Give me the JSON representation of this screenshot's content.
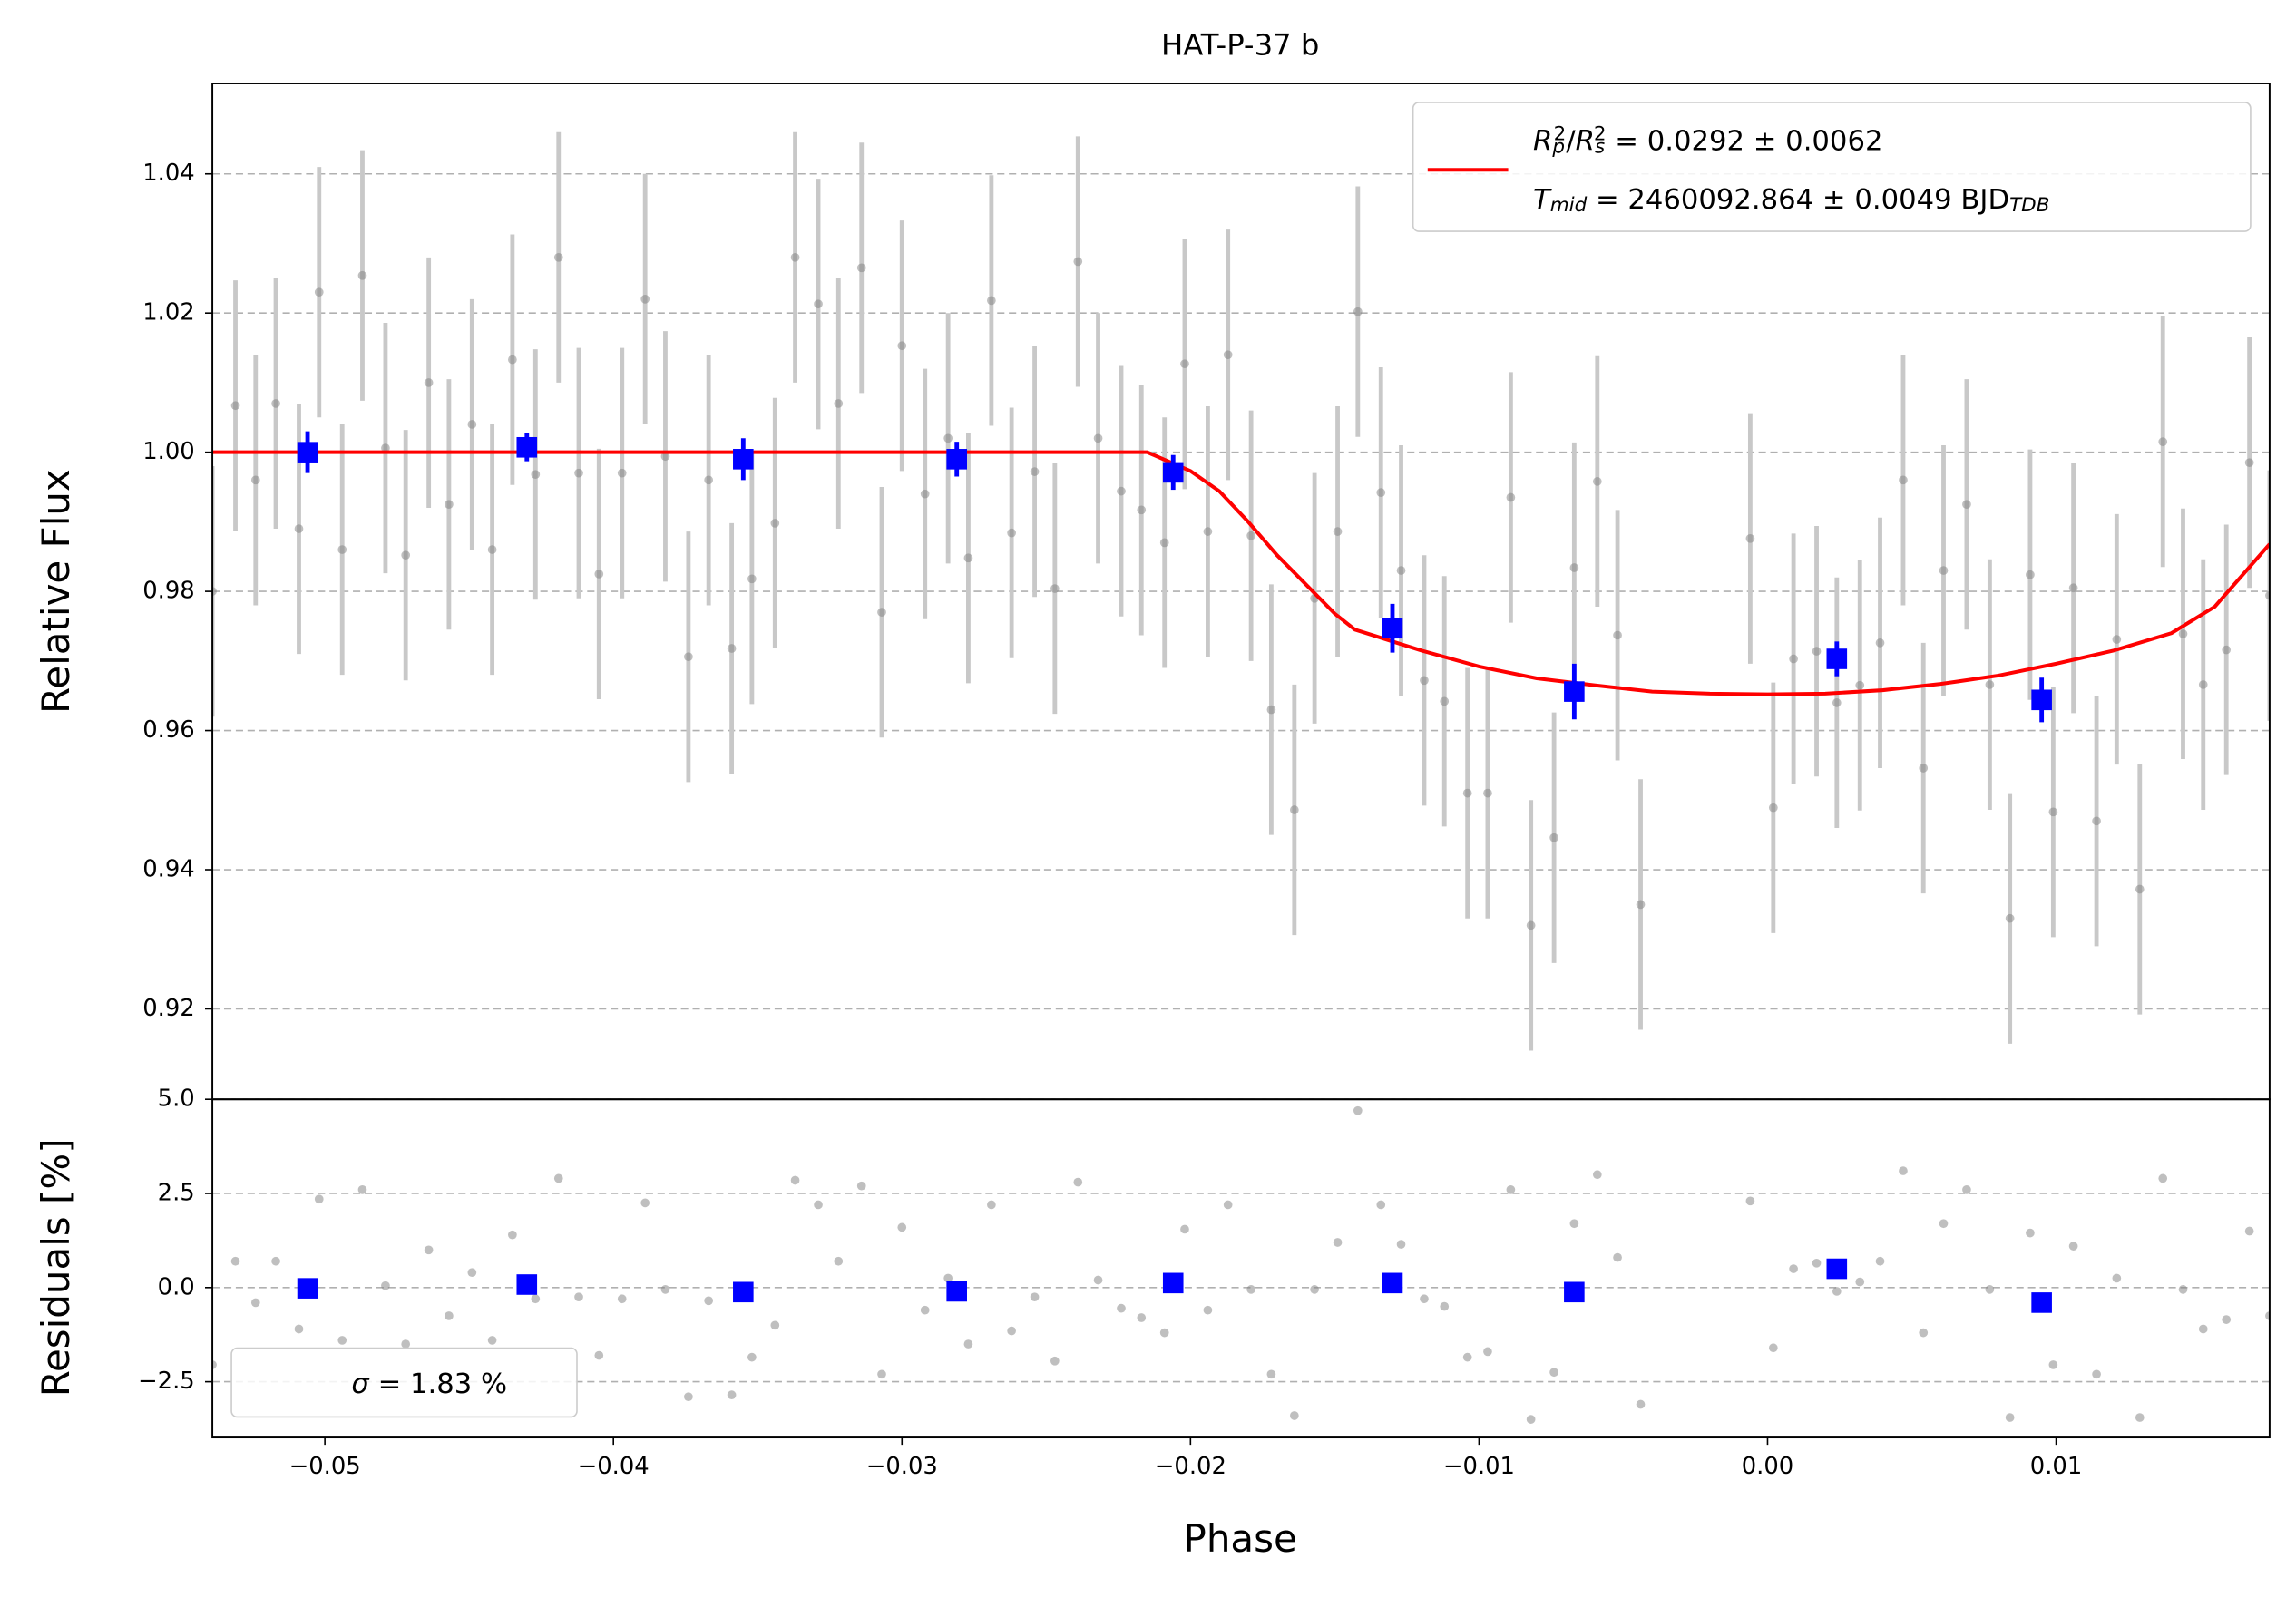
{
  "chart_data": [
    {
      "type": "errorbar",
      "title": "HAT-P-37 b",
      "ylabel": "Relative Flux",
      "xlim": [
        -0.0539,
        0.0174
      ],
      "ylim": [
        0.907,
        1.053
      ],
      "yticks": [
        0.92,
        0.94,
        0.96,
        0.98,
        {
          "value": 1.0,
          "label": "1.00"
        },
        1.02,
        1.04
      ],
      "grid": "y",
      "legend": "upper right",
      "series": [
        {
          "kind": "errorbar",
          "color": "#808080",
          "alpha": 0.5,
          "ecolor": "#c8c8c8",
          "marker": "circle",
          "error": 0.018,
          "x": [
            -0.0539,
            -0.0531,
            -0.0524,
            -0.0517,
            -0.0509,
            -0.0502,
            -0.0494,
            -0.0487,
            -0.0479,
            -0.0472,
            -0.0464,
            -0.0457,
            -0.0449,
            -0.0442,
            -0.0435,
            -0.0427,
            -0.0419,
            -0.0412,
            -0.0405,
            -0.0397,
            -0.0389,
            -0.0382,
            -0.0374,
            -0.0367,
            -0.0359,
            -0.0352,
            -0.0344,
            -0.0337,
            -0.0329,
            -0.0322,
            -0.0314,
            -0.0307,
            -0.03,
            -0.0292,
            -0.0284,
            -0.0277,
            -0.0269,
            -0.0262,
            -0.0254,
            -0.0247,
            -0.0239,
            -0.0232,
            -0.0224,
            -0.0217,
            -0.0209,
            -0.0202,
            -0.0194,
            -0.0187,
            -0.0179,
            -0.0172,
            -0.0164,
            -0.0157,
            -0.0149,
            -0.0142,
            -0.0134,
            -0.0127,
            -0.0119,
            -0.0112,
            -0.0104,
            -0.0097,
            -0.0089,
            -0.0082,
            -0.0074,
            -0.0067,
            -0.0059,
            -0.0052,
            -0.0044,
            -0.0006,
            0.0002,
            0.0009,
            0.0017,
            0.0024,
            0.0032,
            0.0039,
            0.0047,
            0.0054,
            0.0061,
            0.0069,
            0.0077,
            0.0084,
            0.0091,
            0.0099,
            0.0106,
            0.0114,
            0.0121,
            0.0129,
            0.0137,
            0.0144,
            0.0151,
            0.0159,
            0.0167,
            0.0174
          ],
          "values": [
            0.98,
            1.0067,
            0.996,
            1.007,
            0.989,
            1.023,
            0.986,
            1.0254,
            1.0006,
            0.9852,
            1.01,
            0.9925,
            1.004,
            0.986,
            1.0133,
            0.9968,
            1.028,
            0.997,
            0.9825,
            0.997,
            1.022,
            0.9994,
            0.9706,
            0.996,
            0.9718,
            0.9818,
            0.9898,
            1.028,
            1.0213,
            1.007,
            1.0265,
            0.977,
            1.0153,
            0.994,
            1.002,
            0.9848,
            1.0218,
            0.9884,
            0.9972,
            0.9804,
            1.0274,
            1.002,
            0.9944,
            0.9917,
            0.987,
            1.0127,
            0.9886,
            1.014,
            0.988,
            0.963,
            0.9486,
            0.979,
            0.9886,
            1.0202,
            0.9942,
            0.983,
            0.9672,
            0.9642,
            0.951,
            0.951,
            0.9935,
            0.932,
            0.9446,
            0.9834,
            0.9958,
            0.9737,
            0.935,
            0.9876,
            0.9489,
            0.9703,
            0.9714,
            0.964,
            0.9665,
            0.9726,
            0.996,
            0.9546,
            0.983,
            0.9925,
            0.9666,
            0.933,
            0.9824,
            0.9483,
            0.9805,
            0.947,
            0.9731,
            0.9372,
            1.0015,
            0.9739,
            0.9666,
            0.9716,
            0.9985,
            0.9794
          ]
        },
        {
          "kind": "errorbar",
          "color": "#0000ff",
          "alpha": 1,
          "ecolor": "#0000ff",
          "marker": "square",
          "x": [
            -0.0506,
            -0.043,
            -0.0355,
            -0.0281,
            -0.0206,
            -0.013,
            -0.0067,
            0.0024,
            0.0095
          ],
          "values": [
            1.0,
            1.0007,
            0.999,
            0.999,
            0.9971,
            0.9747,
            0.9656,
            0.9703,
            0.9644
          ],
          "errors": [
            0.003,
            0.002,
            0.003,
            0.0025,
            0.0025,
            0.0035,
            0.004,
            0.0025,
            0.0032
          ]
        },
        {
          "kind": "line",
          "color": "#ff0000",
          "x": [
            -0.0539,
            -0.0215,
            -0.02,
            -0.019,
            -0.018,
            -0.017,
            -0.016,
            -0.015,
            -0.0143,
            -0.012,
            -0.01,
            -0.008,
            -0.006,
            -0.004,
            -0.002,
            0.0,
            0.002,
            0.004,
            0.006,
            0.008,
            0.01,
            0.012,
            0.014,
            0.0155,
            0.0174
          ],
          "values": [
            1.0,
            1.0,
            0.9973,
            0.9944,
            0.99,
            0.9852,
            0.981,
            0.9768,
            0.9745,
            0.9715,
            0.9692,
            0.9675,
            0.9665,
            0.9656,
            0.9653,
            0.9652,
            0.9653,
            0.9658,
            0.9667,
            0.9679,
            0.9696,
            0.9715,
            0.974,
            0.9778,
            0.9868
          ],
          "label_lines": [
            [
              {
                "text": "R",
                "style": "italic"
              },
              {
                "text": "p",
                "style": "sub"
              },
              {
                "text": "2",
                "style": "sup"
              },
              {
                "text": "/",
                "style": "normal"
              },
              {
                "text": "R",
                "style": "italic"
              },
              {
                "text": "s",
                "style": "sub"
              },
              {
                "text": "2",
                "style": "sup"
              },
              {
                "text": " = 0.0292 ± 0.0062",
                "style": "normal"
              }
            ],
            [
              {
                "text": "T",
                "style": "italic"
              },
              {
                "text": "mid",
                "style": "sub"
              },
              {
                "text": " = 2460092.864 ± 0.0049 BJD",
                "style": "normal"
              },
              {
                "text": "TDB",
                "style": "sub"
              }
            ]
          ]
        }
      ]
    },
    {
      "type": "scatter",
      "ylabel": "Residuals [%]",
      "xlabel": "Phase",
      "xlim": [
        -0.0539,
        0.0174
      ],
      "ylim": [
        -3.98,
        5.0
      ],
      "xticks": [
        {
          "value": -0.05,
          "label": "−0.05"
        },
        {
          "value": -0.04,
          "label": "−0.04"
        },
        {
          "value": -0.03,
          "label": "−0.03"
        },
        {
          "value": -0.02,
          "label": "−0.02"
        },
        {
          "value": -0.01,
          "label": "−0.01"
        },
        {
          "value": 0,
          "label": "0.00"
        },
        0.01
      ],
      "yticks": [
        {
          "value": -2.5,
          "label": "−2.5"
        },
        {
          "value": 0,
          "label": "0.0"
        },
        2.5,
        {
          "value": 5,
          "label": "5.0"
        }
      ],
      "grid": "y",
      "legend": "lower left",
      "legend_parts": [
        {
          "text": "σ",
          "style": "italic"
        },
        {
          "text": " = 1.83 %",
          "style": "normal"
        }
      ],
      "series": [
        {
          "kind": "scatter",
          "color": "#808080",
          "alpha": 0.5,
          "marker": "circle",
          "x": [
            -0.0539,
            -0.0531,
            -0.0524,
            -0.0517,
            -0.0509,
            -0.0502,
            -0.0494,
            -0.0487,
            -0.0479,
            -0.0472,
            -0.0464,
            -0.0457,
            -0.0449,
            -0.0442,
            -0.0435,
            -0.0427,
            -0.0419,
            -0.0412,
            -0.0405,
            -0.0397,
            -0.0389,
            -0.0382,
            -0.0374,
            -0.0367,
            -0.0359,
            -0.0352,
            -0.0344,
            -0.0337,
            -0.0329,
            -0.0322,
            -0.0314,
            -0.0307,
            -0.03,
            -0.0292,
            -0.0284,
            -0.0277,
            -0.0269,
            -0.0262,
            -0.0254,
            -0.0247,
            -0.0239,
            -0.0232,
            -0.0224,
            -0.0217,
            -0.0209,
            -0.0202,
            -0.0194,
            -0.0187,
            -0.0179,
            -0.0172,
            -0.0164,
            -0.0157,
            -0.0149,
            -0.0142,
            -0.0134,
            -0.0127,
            -0.0119,
            -0.0112,
            -0.0104,
            -0.0097,
            -0.0089,
            -0.0082,
            -0.0074,
            -0.0067,
            -0.0059,
            -0.0052,
            -0.0044,
            -0.0006,
            0.0002,
            0.0009,
            0.0017,
            0.0024,
            0.0032,
            0.0039,
            0.0047,
            0.0054,
            0.0061,
            0.0069,
            0.0077,
            0.0084,
            0.0091,
            0.0099,
            0.0106,
            0.0114,
            0.0121,
            0.0129,
            0.0137,
            0.0144,
            0.0151,
            0.0159,
            0.0167,
            0.0174
          ],
          "values": [
            -2.05,
            0.7,
            -0.4,
            0.7,
            -1.1,
            2.35,
            -1.4,
            2.6,
            0.05,
            -1.5,
            1.0,
            -0.75,
            0.4,
            -1.4,
            1.4,
            -0.3,
            2.9,
            -0.25,
            -1.8,
            -0.3,
            2.25,
            -0.05,
            -2.9,
            -0.35,
            -2.85,
            -1.85,
            -1.0,
            2.85,
            2.2,
            0.7,
            2.7,
            -2.3,
            1.6,
            -0.6,
            0.25,
            -1.5,
            2.2,
            -1.15,
            -0.25,
            -1.95,
            2.8,
            0.2,
            -0.55,
            -0.8,
            -1.2,
            1.55,
            -0.6,
            2.2,
            -0.05,
            -2.3,
            -3.4,
            -0.05,
            1.2,
            4.7,
            2.2,
            1.15,
            -0.3,
            -0.5,
            -1.85,
            -1.7,
            2.6,
            -3.5,
            -2.25,
            1.7,
            3.0,
            0.8,
            -3.1,
            2.3,
            -1.6,
            0.5,
            0.65,
            -0.1,
            0.15,
            0.7,
            3.1,
            -1.2,
            1.7,
            2.6,
            -0.05,
            -3.45,
            1.45,
            -2.05,
            1.1,
            -2.3,
            0.25,
            -3.45,
            2.9,
            -0.05,
            -1.1,
            -0.85,
            1.5,
            -0.75
          ]
        },
        {
          "kind": "scatter",
          "color": "#0000ff",
          "alpha": 1,
          "marker": "square",
          "x": [
            -0.0506,
            -0.043,
            -0.0355,
            -0.0281,
            -0.0206,
            -0.013,
            -0.0067,
            0.0024,
            0.0095
          ],
          "values": [
            -0.02,
            0.08,
            -0.12,
            -0.1,
            0.12,
            0.12,
            -0.12,
            0.5,
            -0.4
          ]
        }
      ]
    }
  ]
}
